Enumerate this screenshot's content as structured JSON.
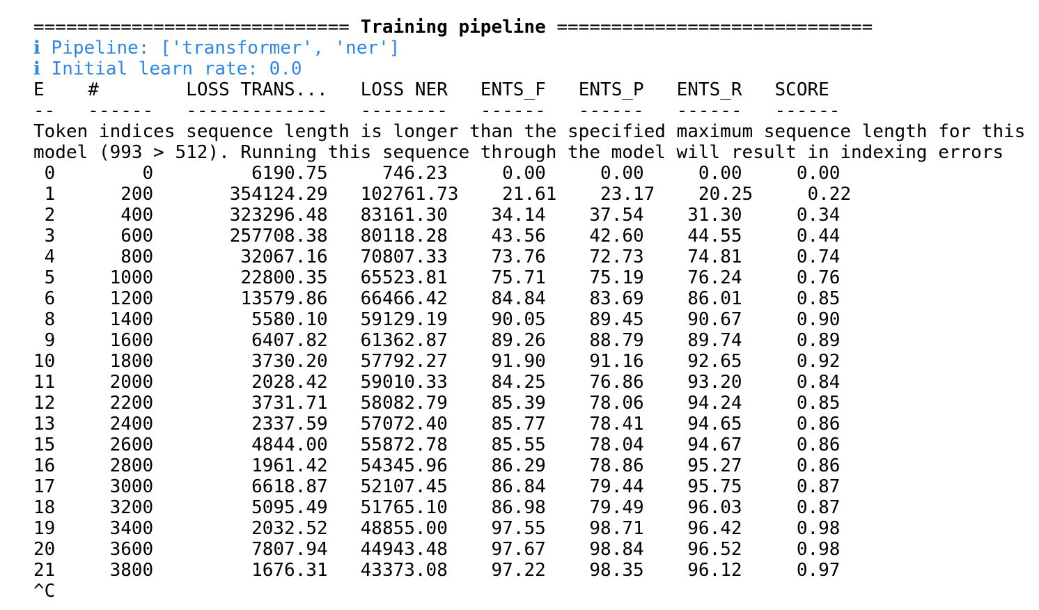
{
  "terminal": {
    "header": {
      "rule_left": "=============================",
      "title": "Training pipeline",
      "rule_right": "============================="
    },
    "info_marker": "ℹ",
    "info_color": "#2f86e3",
    "info_lines": [
      "Pipeline: ['transformer', 'ner']",
      "Initial learn rate: 0.0"
    ],
    "table": {
      "columns": [
        {
          "label": "E",
          "width": 2,
          "align": "right"
        },
        {
          "label": "#",
          "width": 6,
          "align": "right"
        },
        {
          "label": "LOSS TRANS...",
          "width": 13,
          "align": "right"
        },
        {
          "label": "LOSS NER",
          "width": 8,
          "align": "right"
        },
        {
          "label": "ENTS_F",
          "width": 6,
          "align": "right"
        },
        {
          "label": "ENTS_P",
          "width": 6,
          "align": "right"
        },
        {
          "label": "ENTS_R",
          "width": 6,
          "align": "right"
        },
        {
          "label": "SCORE",
          "width": 6,
          "align": "right"
        }
      ],
      "header_labels": [
        "E",
        "#",
        "LOSS TRANS...",
        "LOSS NER",
        "ENTS_F",
        "ENTS_P",
        "ENTS_R",
        "SCORE"
      ],
      "rows": [
        [
          "0",
          "0",
          "6190.75",
          "746.23",
          "0.00",
          "0.00",
          "0.00",
          "0.00"
        ],
        [
          "1",
          "200",
          "354124.29",
          "102761.73",
          "21.61",
          "23.17",
          "20.25",
          "0.22"
        ],
        [
          "2",
          "400",
          "323296.48",
          "83161.30",
          "34.14",
          "37.54",
          "31.30",
          "0.34"
        ],
        [
          "3",
          "600",
          "257708.38",
          "80118.28",
          "43.56",
          "42.60",
          "44.55",
          "0.44"
        ],
        [
          "4",
          "800",
          "32067.16",
          "70807.33",
          "73.76",
          "72.73",
          "74.81",
          "0.74"
        ],
        [
          "5",
          "1000",
          "22800.35",
          "65523.81",
          "75.71",
          "75.19",
          "76.24",
          "0.76"
        ],
        [
          "6",
          "1200",
          "13579.86",
          "66466.42",
          "84.84",
          "83.69",
          "86.01",
          "0.85"
        ],
        [
          "8",
          "1400",
          "5580.10",
          "59129.19",
          "90.05",
          "89.45",
          "90.67",
          "0.90"
        ],
        [
          "9",
          "1600",
          "6407.82",
          "61362.87",
          "89.26",
          "88.79",
          "89.74",
          "0.89"
        ],
        [
          "10",
          "1800",
          "3730.20",
          "57792.27",
          "91.90",
          "91.16",
          "92.65",
          "0.92"
        ],
        [
          "11",
          "2000",
          "2028.42",
          "59010.33",
          "84.25",
          "76.86",
          "93.20",
          "0.84"
        ],
        [
          "12",
          "2200",
          "3731.71",
          "58082.79",
          "85.39",
          "78.06",
          "94.24",
          "0.85"
        ],
        [
          "13",
          "2400",
          "2337.59",
          "57072.40",
          "85.77",
          "78.41",
          "94.65",
          "0.86"
        ],
        [
          "15",
          "2600",
          "4844.00",
          "55872.78",
          "85.55",
          "78.04",
          "94.67",
          "0.86"
        ],
        [
          "16",
          "2800",
          "1961.42",
          "54345.96",
          "86.29",
          "78.86",
          "95.27",
          "0.86"
        ],
        [
          "17",
          "3000",
          "6618.87",
          "52107.45",
          "86.84",
          "79.44",
          "95.75",
          "0.87"
        ],
        [
          "18",
          "3200",
          "5095.49",
          "51765.10",
          "86.98",
          "79.49",
          "96.03",
          "0.87"
        ],
        [
          "19",
          "3400",
          "2032.52",
          "48855.00",
          "97.55",
          "98.71",
          "96.42",
          "0.98"
        ],
        [
          "20",
          "3600",
          "7807.94",
          "44943.48",
          "97.67",
          "98.84",
          "96.52",
          "0.98"
        ],
        [
          "21",
          "3800",
          "1676.31",
          "43373.08",
          "97.22",
          "98.35",
          "96.12",
          "0.97"
        ]
      ]
    },
    "warning_lines": [
      "Token indices sequence length is longer than the specified maximum sequence length for this",
      "model (993 > 512). Running this sequence through the model will result in indexing errors"
    ],
    "interrupt": "^C"
  }
}
